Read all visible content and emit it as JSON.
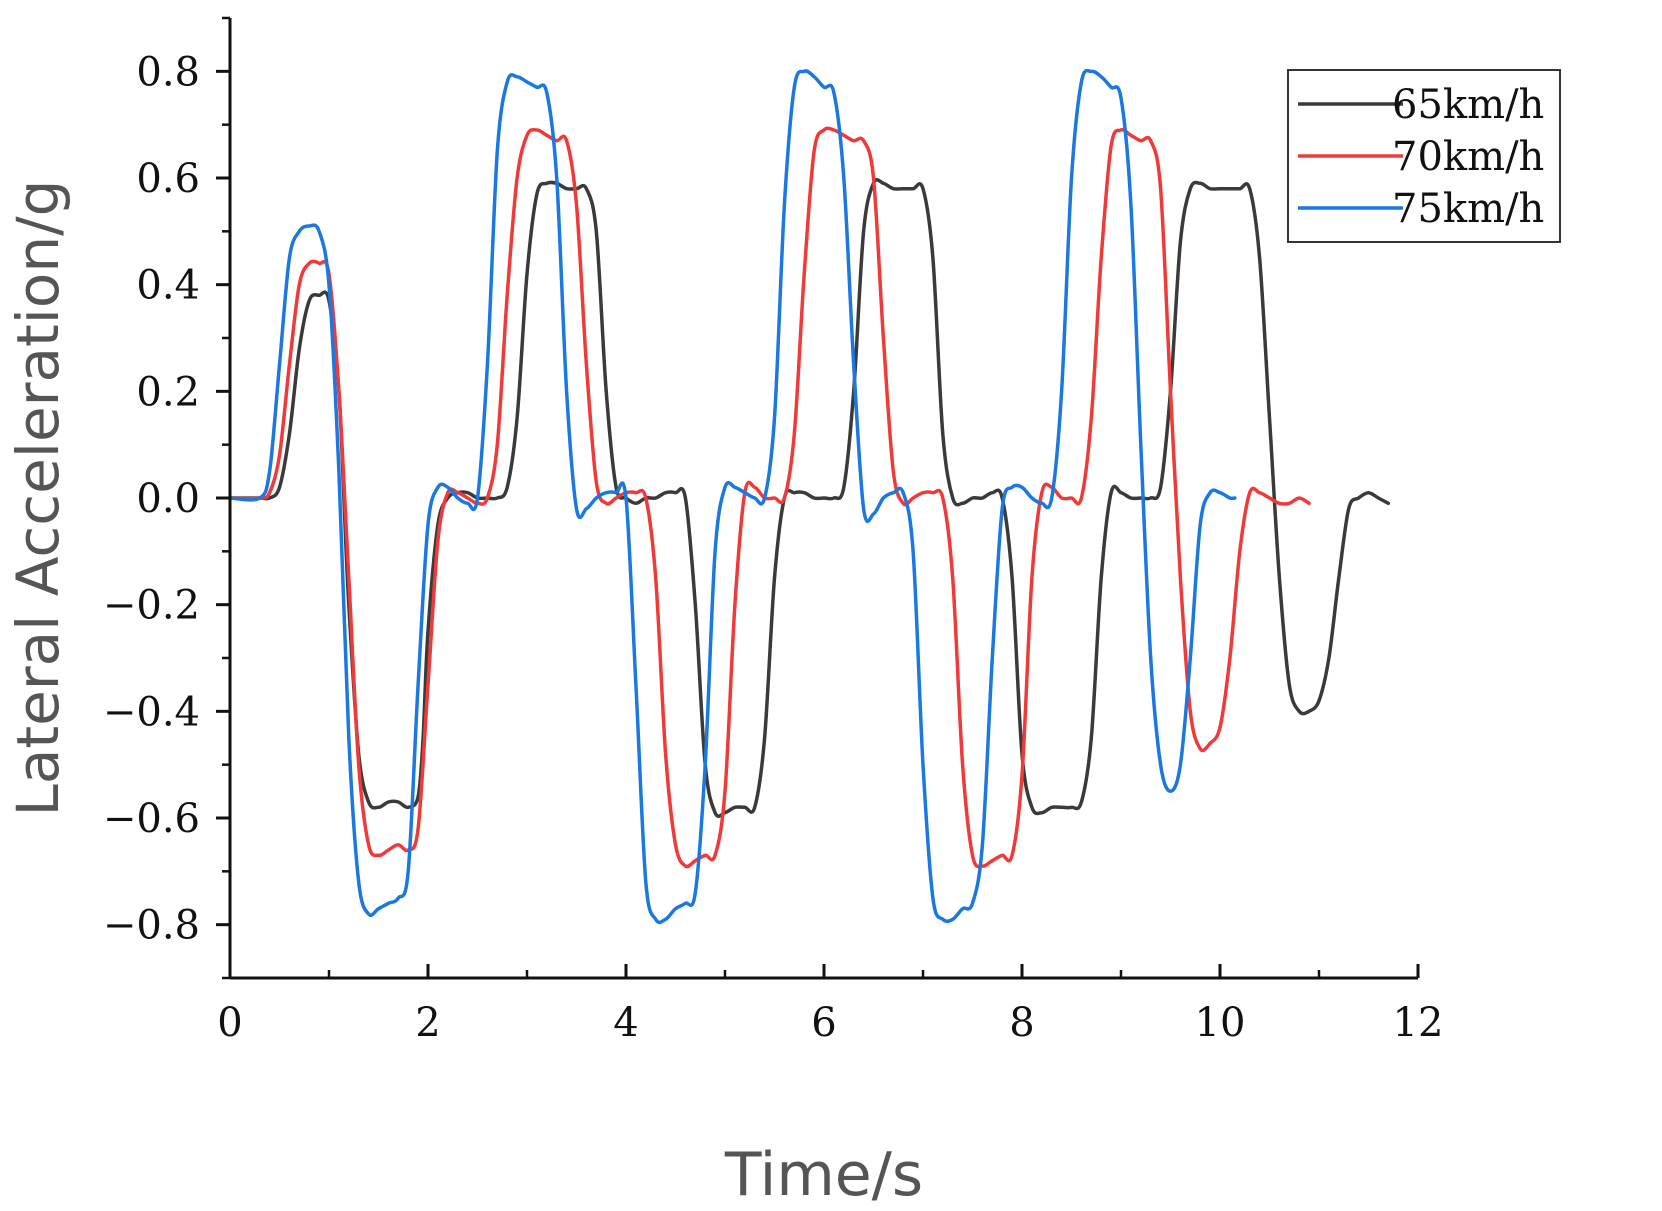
{
  "chart_data": {
    "type": "line",
    "title": "",
    "xlabel": "Time/s",
    "ylabel": "Lateral Acceleration/g",
    "xlim": [
      0,
      12
    ],
    "ylim": [
      -0.9,
      0.9
    ],
    "xticks": [
      0,
      2,
      4,
      6,
      8,
      10,
      12
    ],
    "xtick_labels": [
      "0",
      "2",
      "4",
      "6",
      "8",
      "10",
      "12"
    ],
    "yticks": [
      -0.8,
      -0.6,
      -0.4,
      -0.2,
      0.0,
      0.2,
      0.4,
      0.6,
      0.8
    ],
    "ytick_labels": [
      "−0.8",
      "−0.6",
      "−0.4",
      "−0.2",
      "0.0",
      "0.2",
      "0.4",
      "0.6",
      "0.8"
    ],
    "grid": false,
    "legend_position": "top-right",
    "series": [
      {
        "name": "65km/h",
        "color": "#3a3a3a",
        "x": [
          0.0,
          0.3,
          0.4,
          0.5,
          0.6,
          0.7,
          0.8,
          0.9,
          1.0,
          1.1,
          1.15,
          1.2,
          1.3,
          1.4,
          1.5,
          1.6,
          1.7,
          1.8,
          1.9,
          1.95,
          2.0,
          2.1,
          2.2,
          2.3,
          2.4,
          2.5,
          2.6,
          2.7,
          2.8,
          2.9,
          3.0,
          3.1,
          3.2,
          3.3,
          3.4,
          3.5,
          3.6,
          3.7,
          3.8,
          3.9,
          4.0,
          4.1,
          4.2,
          4.3,
          4.4,
          4.5,
          4.6,
          4.7,
          4.8,
          4.9,
          5.0,
          5.1,
          5.2,
          5.3,
          5.4,
          5.5,
          5.6,
          5.7,
          5.8,
          5.9,
          6.0,
          6.1,
          6.2,
          6.3,
          6.4,
          6.5,
          6.6,
          6.7,
          6.8,
          6.9,
          7.0,
          7.1,
          7.2,
          7.3,
          7.4,
          7.5,
          7.6,
          7.7,
          7.8,
          7.9,
          8.0,
          8.1,
          8.2,
          8.3,
          8.4,
          8.5,
          8.6,
          8.7,
          8.8,
          8.9,
          9.0,
          9.1,
          9.2,
          9.3,
          9.4,
          9.5,
          9.6,
          9.7,
          9.8,
          9.9,
          10.0,
          10.1,
          10.2,
          10.3,
          10.4,
          10.5,
          10.6,
          10.7,
          10.8,
          10.9,
          11.0,
          11.1,
          11.2,
          11.3,
          11.4,
          11.5,
          11.6,
          11.7
        ],
        "values": [
          0.0,
          0.0,
          0.0,
          0.02,
          0.12,
          0.28,
          0.37,
          0.38,
          0.37,
          0.2,
          0.0,
          -0.2,
          -0.48,
          -0.57,
          -0.58,
          -0.57,
          -0.57,
          -0.58,
          -0.56,
          -0.45,
          -0.25,
          -0.05,
          0.0,
          0.01,
          0.01,
          0.0,
          0.0,
          0.0,
          0.02,
          0.15,
          0.42,
          0.57,
          0.59,
          0.59,
          0.58,
          0.58,
          0.58,
          0.5,
          0.2,
          0.02,
          0.0,
          -0.01,
          0.0,
          0.0,
          0.01,
          0.01,
          0.0,
          -0.2,
          -0.5,
          -0.59,
          -0.59,
          -0.58,
          -0.58,
          -0.58,
          -0.45,
          -0.15,
          0.0,
          0.01,
          0.01,
          0.0,
          0.0,
          0.0,
          0.02,
          0.2,
          0.5,
          0.59,
          0.59,
          0.58,
          0.58,
          0.58,
          0.58,
          0.45,
          0.12,
          0.0,
          -0.01,
          0.0,
          0.0,
          0.01,
          0.0,
          -0.15,
          -0.48,
          -0.58,
          -0.59,
          -0.58,
          -0.58,
          -0.58,
          -0.57,
          -0.45,
          -0.15,
          0.01,
          0.01,
          0.0,
          0.0,
          0.0,
          0.02,
          0.2,
          0.48,
          0.58,
          0.59,
          0.58,
          0.58,
          0.58,
          0.58,
          0.58,
          0.45,
          0.15,
          -0.15,
          -0.35,
          -0.4,
          -0.4,
          -0.38,
          -0.3,
          -0.15,
          -0.02,
          0.0,
          0.01,
          0.0,
          -0.01
        ]
      },
      {
        "name": "70km/h",
        "color": "#f03a3a",
        "x": [
          0.0,
          0.3,
          0.4,
          0.5,
          0.6,
          0.7,
          0.8,
          0.9,
          1.0,
          1.1,
          1.2,
          1.3,
          1.4,
          1.5,
          1.6,
          1.7,
          1.8,
          1.9,
          2.0,
          2.1,
          2.2,
          2.3,
          2.4,
          2.5,
          2.6,
          2.7,
          2.8,
          2.9,
          3.0,
          3.1,
          3.2,
          3.3,
          3.4,
          3.5,
          3.6,
          3.7,
          3.8,
          3.9,
          4.0,
          4.1,
          4.2,
          4.3,
          4.4,
          4.5,
          4.6,
          4.7,
          4.8,
          4.9,
          5.0,
          5.1,
          5.2,
          5.3,
          5.4,
          5.5,
          5.6,
          5.7,
          5.8,
          5.9,
          6.0,
          6.1,
          6.2,
          6.3,
          6.4,
          6.5,
          6.6,
          6.7,
          6.8,
          6.9,
          7.0,
          7.1,
          7.2,
          7.3,
          7.4,
          7.5,
          7.6,
          7.7,
          7.8,
          7.9,
          8.0,
          8.1,
          8.2,
          8.3,
          8.4,
          8.5,
          8.6,
          8.7,
          8.8,
          8.9,
          9.0,
          9.1,
          9.2,
          9.3,
          9.4,
          9.5,
          9.6,
          9.7,
          9.8,
          9.9,
          10.0,
          10.1,
          10.2,
          10.3,
          10.4,
          10.5,
          10.6,
          10.7,
          10.8,
          10.9
        ],
        "values": [
          0.0,
          0.0,
          0.01,
          0.08,
          0.25,
          0.4,
          0.44,
          0.44,
          0.42,
          0.2,
          -0.15,
          -0.5,
          -0.65,
          -0.67,
          -0.66,
          -0.65,
          -0.66,
          -0.62,
          -0.35,
          -0.08,
          0.01,
          0.01,
          0.0,
          -0.01,
          0.0,
          0.1,
          0.38,
          0.6,
          0.68,
          0.69,
          0.68,
          0.67,
          0.67,
          0.55,
          0.25,
          0.03,
          -0.01,
          0.0,
          0.01,
          0.01,
          0.0,
          -0.15,
          -0.48,
          -0.65,
          -0.69,
          -0.68,
          -0.67,
          -0.67,
          -0.55,
          -0.2,
          0.01,
          0.02,
          0.0,
          0.0,
          0.0,
          0.12,
          0.42,
          0.65,
          0.69,
          0.69,
          0.68,
          0.67,
          0.67,
          0.6,
          0.3,
          0.05,
          -0.01,
          0.0,
          0.01,
          0.01,
          0.0,
          -0.15,
          -0.5,
          -0.67,
          -0.69,
          -0.68,
          -0.67,
          -0.67,
          -0.52,
          -0.15,
          0.01,
          0.02,
          0.0,
          0.0,
          0.0,
          0.15,
          0.45,
          0.66,
          0.69,
          0.68,
          0.67,
          0.67,
          0.58,
          0.2,
          -0.15,
          -0.4,
          -0.47,
          -0.46,
          -0.43,
          -0.3,
          -0.1,
          0.01,
          0.01,
          0.0,
          -0.01,
          -0.01,
          0.0,
          -0.01
        ]
      },
      {
        "name": "75km/h",
        "color": "#1a78e0",
        "x": [
          0.0,
          0.3,
          0.4,
          0.5,
          0.6,
          0.7,
          0.8,
          0.9,
          1.0,
          1.1,
          1.2,
          1.3,
          1.4,
          1.5,
          1.6,
          1.7,
          1.8,
          1.9,
          2.0,
          2.1,
          2.2,
          2.3,
          2.4,
          2.5,
          2.6,
          2.7,
          2.8,
          2.9,
          3.0,
          3.1,
          3.2,
          3.3,
          3.4,
          3.5,
          3.6,
          3.7,
          3.8,
          3.9,
          4.0,
          4.1,
          4.2,
          4.3,
          4.4,
          4.5,
          4.6,
          4.7,
          4.8,
          4.9,
          5.0,
          5.1,
          5.2,
          5.3,
          5.4,
          5.5,
          5.6,
          5.7,
          5.8,
          5.9,
          6.0,
          6.1,
          6.2,
          6.3,
          6.4,
          6.5,
          6.6,
          6.7,
          6.8,
          6.9,
          7.0,
          7.1,
          7.2,
          7.3,
          7.4,
          7.5,
          7.6,
          7.7,
          7.8,
          7.9,
          8.0,
          8.1,
          8.2,
          8.3,
          8.4,
          8.5,
          8.6,
          8.7,
          8.8,
          8.9,
          9.0,
          9.1,
          9.2,
          9.3,
          9.4,
          9.5,
          9.6,
          9.7,
          9.8,
          9.9,
          10.0,
          10.1,
          10.15
        ],
        "values": [
          0.0,
          0.0,
          0.05,
          0.25,
          0.45,
          0.5,
          0.51,
          0.5,
          0.4,
          0.05,
          -0.45,
          -0.72,
          -0.78,
          -0.77,
          -0.76,
          -0.75,
          -0.7,
          -0.35,
          -0.05,
          0.02,
          0.02,
          0.0,
          -0.01,
          0.0,
          0.25,
          0.65,
          0.78,
          0.79,
          0.78,
          0.77,
          0.76,
          0.6,
          0.2,
          -0.02,
          -0.02,
          0.0,
          0.01,
          0.01,
          0.0,
          -0.35,
          -0.72,
          -0.79,
          -0.79,
          -0.77,
          -0.76,
          -0.74,
          -0.5,
          -0.1,
          0.02,
          0.02,
          0.01,
          0.0,
          0.0,
          0.15,
          0.55,
          0.77,
          0.8,
          0.79,
          0.77,
          0.76,
          0.6,
          0.25,
          -0.02,
          -0.03,
          0.0,
          0.01,
          0.01,
          -0.1,
          -0.5,
          -0.75,
          -0.79,
          -0.79,
          -0.77,
          -0.76,
          -0.65,
          -0.3,
          -0.02,
          0.02,
          0.02,
          0.0,
          -0.01,
          0.0,
          0.2,
          0.6,
          0.78,
          0.8,
          0.79,
          0.77,
          0.75,
          0.55,
          0.1,
          -0.3,
          -0.5,
          -0.55,
          -0.5,
          -0.3,
          -0.05,
          0.01,
          0.01,
          0.0,
          0.0
        ]
      }
    ]
  }
}
